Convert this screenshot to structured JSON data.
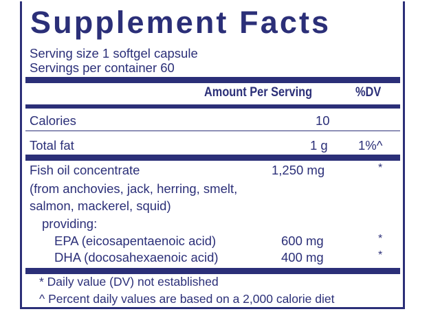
{
  "title": "Supplement Facts",
  "serving_size": "Serving size  1 softgel capsule",
  "servings_per_container": "Servings per container  60",
  "header": {
    "amount": "Amount Per Serving",
    "dv": "%DV"
  },
  "rows": [
    {
      "name": "Calories",
      "amount": "10",
      "dv": ""
    },
    {
      "name": "Total fat",
      "amount": "1 g",
      "dv": "1%^"
    }
  ],
  "fish_oil": {
    "name": "Fish oil concentrate",
    "amount": "1,250 mg",
    "dv": "*",
    "source_lines": [
      "(from anchovies, jack, herring, smelt,",
      "salmon, mackerel, squid)"
    ],
    "providing": "providing:",
    "components": [
      {
        "name": "EPA (eicosapentaenoic acid)",
        "amount": "600 mg",
        "dv": "*"
      },
      {
        "name": "DHA (docosahexaenoic acid)",
        "amount": "400 mg",
        "dv": "*"
      }
    ]
  },
  "footnotes": [
    "* Daily value (DV) not established",
    "^ Percent daily values are based on a 2,000 calorie diet"
  ],
  "colors": {
    "ink": "#2b2f78",
    "background": "#ffffff"
  }
}
